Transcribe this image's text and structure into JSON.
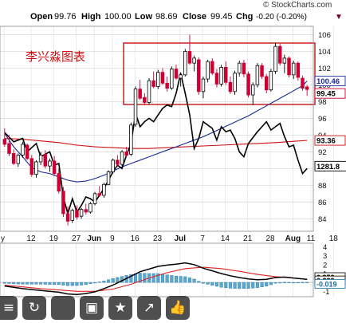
{
  "header": {
    "watermark": "© StockCharts.com",
    "open_label": "Open",
    "open_value": "99.76",
    "high_label": "High",
    "high_value": "100.00",
    "low_label": "Low",
    "low_value": "98.69",
    "close_label": "Close",
    "close_value": "99.45",
    "chg_label": "Chg",
    "chg_value": "-0.20 (-0.20%)",
    "chg_arrow": "▼"
  },
  "annotation": "李兴淼图表",
  "colors": {
    "up": "#ffffff",
    "down": "#cc0033",
    "price_line": "#000000",
    "ma_blue": "#1a2a9a",
    "ma_red": "#cc1111",
    "box": "#c00000",
    "macd": "#000000",
    "signal": "#dd2222",
    "hist": "#5aa8d0"
  },
  "chart_data": {
    "type": "candlestick",
    "x_labels": [
      "y",
      "12",
      "19",
      "27",
      "Jun",
      "9",
      "16",
      "23",
      "Jul",
      "7",
      "14",
      "21",
      "28",
      "Aug",
      "11",
      "18"
    ],
    "y_ticks": [
      84,
      86,
      88,
      90,
      92,
      94,
      96,
      98,
      100,
      102,
      104,
      106
    ],
    "ylim": [
      82.5,
      107
    ],
    "last_price_label": "99.45",
    "price_markers": [
      {
        "label": "100.46",
        "value": 100.46
      },
      {
        "label": "99.45",
        "value": 99.45
      },
      {
        "label": "93.36",
        "value": 93.36
      }
    ],
    "overlay_label": "1281.8",
    "macd_ticks": [
      "4",
      "3",
      "2",
      "1",
      "0",
      "-1"
    ],
    "macd_ylim": [
      -1.6,
      4.4
    ],
    "macd_labels": [
      "0.352",
      "0.333",
      "-0.019"
    ],
    "macd_labels_note": "partially obscured at right edge",
    "candles": [
      [
        93.5,
        94.8,
        92.6,
        92.9
      ],
      [
        93.0,
        94.0,
        91.5,
        91.8
      ],
      [
        91.8,
        92.3,
        90.4,
        90.6
      ],
      [
        90.6,
        91.8,
        90.2,
        91.6
      ],
      [
        91.6,
        93.2,
        91.3,
        92.9
      ],
      [
        92.8,
        93.0,
        91.0,
        91.2
      ],
      [
        91.2,
        91.6,
        89.0,
        89.3
      ],
      [
        89.3,
        91.0,
        88.9,
        90.8
      ],
      [
        90.8,
        92.0,
        90.4,
        91.6
      ],
      [
        91.7,
        92.2,
        90.0,
        90.3
      ],
      [
        90.3,
        91.2,
        89.6,
        90.9
      ],
      [
        90.9,
        91.5,
        89.1,
        89.4
      ],
      [
        89.4,
        90.0,
        87.0,
        87.3
      ],
      [
        87.3,
        87.8,
        84.2,
        84.6
      ],
      [
        84.6,
        85.5,
        83.2,
        83.7
      ],
      [
        83.8,
        85.2,
        83.5,
        85.0
      ],
      [
        85.0,
        85.6,
        83.9,
        84.2
      ],
      [
        84.3,
        85.3,
        84.0,
        85.1
      ],
      [
        85.1,
        85.8,
        84.5,
        84.8
      ],
      [
        84.8,
        86.0,
        84.6,
        85.8
      ],
      [
        85.8,
        87.2,
        85.6,
        87.0
      ],
      [
        87.0,
        87.9,
        86.6,
        86.8
      ],
      [
        86.8,
        88.3,
        86.5,
        88.1
      ],
      [
        88.1,
        89.8,
        88.0,
        89.6
      ],
      [
        89.6,
        91.2,
        89.4,
        91.0
      ],
      [
        91.0,
        91.6,
        90.2,
        90.5
      ],
      [
        90.5,
        92.2,
        90.3,
        92.0
      ],
      [
        92.0,
        92.6,
        91.4,
        91.6
      ],
      [
        91.7,
        95.5,
        91.5,
        95.2
      ],
      [
        95.3,
        99.8,
        95.0,
        99.5
      ],
      [
        99.5,
        100.6,
        98.2,
        98.4
      ],
      [
        98.5,
        99.0,
        97.6,
        97.9
      ],
      [
        97.9,
        100.8,
        97.7,
        100.5
      ],
      [
        100.5,
        101.6,
        99.6,
        99.8
      ],
      [
        99.8,
        101.8,
        99.5,
        101.5
      ],
      [
        101.5,
        102.0,
        100.0,
        100.2
      ],
      [
        100.2,
        101.0,
        99.2,
        99.6
      ],
      [
        99.6,
        102.2,
        99.4,
        101.9
      ],
      [
        101.9,
        102.4,
        100.6,
        100.8
      ],
      [
        100.8,
        101.5,
        99.8,
        101.2
      ],
      [
        101.2,
        104.3,
        101.0,
        104.0
      ],
      [
        104.0,
        106.0,
        102.4,
        102.6
      ],
      [
        102.6,
        103.5,
        101.6,
        103.2
      ],
      [
        103.0,
        103.3,
        98.8,
        99.2
      ],
      [
        99.2,
        101.0,
        98.4,
        100.7
      ],
      [
        100.7,
        103.0,
        100.3,
        102.8
      ],
      [
        102.8,
        103.2,
        101.2,
        101.4
      ],
      [
        101.4,
        101.9,
        99.7,
        100.1
      ],
      [
        100.1,
        102.4,
        99.8,
        102.1
      ],
      [
        102.1,
        102.8,
        100.0,
        100.3
      ],
      [
        100.3,
        101.0,
        98.9,
        99.2
      ],
      [
        99.2,
        101.7,
        98.8,
        101.4
      ],
      [
        101.4,
        102.9,
        101.0,
        102.6
      ],
      [
        102.6,
        103.0,
        100.9,
        101.3
      ],
      [
        101.3,
        101.6,
        98.5,
        98.8
      ],
      [
        98.8,
        100.3,
        97.6,
        100.0
      ],
      [
        100.0,
        102.6,
        99.7,
        102.3
      ],
      [
        102.3,
        102.6,
        100.7,
        101.0
      ],
      [
        101.0,
        101.3,
        99.0,
        99.4
      ],
      [
        99.4,
        101.9,
        99.2,
        101.6
      ],
      [
        101.6,
        105.0,
        101.3,
        104.6
      ],
      [
        104.6,
        104.9,
        102.3,
        102.6
      ],
      [
        102.6,
        103.6,
        101.4,
        103.2
      ],
      [
        103.2,
        103.4,
        100.9,
        101.2
      ],
      [
        101.2,
        102.9,
        100.7,
        102.6
      ],
      [
        102.6,
        102.8,
        100.5,
        100.9
      ],
      [
        100.8,
        101.1,
        99.3,
        99.6
      ],
      [
        99.76,
        100.0,
        98.69,
        99.45
      ]
    ],
    "series": [
      {
        "name": "",
        "values": [
          {
            "x": 0,
            "y": 94.2
          },
          {
            "x": 2,
            "y": 92.6
          },
          {
            "x": 4,
            "y": 91.4
          },
          {
            "x": 6,
            "y": 90.1
          },
          {
            "x": 8,
            "y": 89.6
          },
          {
            "x": 10,
            "y": 89.4
          },
          {
            "x": 12,
            "y": 89.0
          },
          {
            "x": 14,
            "y": 88.6
          },
          {
            "x": 16,
            "y": 88.4
          },
          {
            "x": 18,
            "y": 88.5
          },
          {
            "x": 20,
            "y": 88.8
          },
          {
            "x": 22,
            "y": 89.2
          },
          {
            "x": 24,
            "y": 89.7
          },
          {
            "x": 26,
            "y": 90.2
          },
          {
            "x": 28,
            "y": 90.6
          },
          {
            "x": 30,
            "y": 91.0
          },
          {
            "x": 32,
            "y": 91.4
          },
          {
            "x": 34,
            "y": 91.8
          },
          {
            "x": 36,
            "y": 92.2
          },
          {
            "x": 38,
            "y": 92.6
          },
          {
            "x": 40,
            "y": 93.0
          },
          {
            "x": 42,
            "y": 93.4
          },
          {
            "x": 44,
            "y": 93.8
          },
          {
            "x": 46,
            "y": 94.3
          },
          {
            "x": 48,
            "y": 94.8
          },
          {
            "x": 50,
            "y": 95.3
          },
          {
            "x": 52,
            "y": 95.8
          },
          {
            "x": 54,
            "y": 96.3
          },
          {
            "x": 56,
            "y": 96.9
          },
          {
            "x": 58,
            "y": 97.5
          },
          {
            "x": 60,
            "y": 98.1
          },
          {
            "x": 62,
            "y": 98.7
          },
          {
            "x": 64,
            "y": 99.3
          },
          {
            "x": 66,
            "y": 99.9
          },
          {
            "x": 67,
            "y": 100.46
          }
        ]
      },
      {
        "name": "",
        "values": [
          {
            "x": 0,
            "y": 93.6
          },
          {
            "x": 4,
            "y": 93.5
          },
          {
            "x": 8,
            "y": 93.3
          },
          {
            "x": 12,
            "y": 93.1
          },
          {
            "x": 16,
            "y": 92.8
          },
          {
            "x": 20,
            "y": 92.6
          },
          {
            "x": 24,
            "y": 92.5
          },
          {
            "x": 28,
            "y": 92.4
          },
          {
            "x": 32,
            "y": 92.4
          },
          {
            "x": 36,
            "y": 92.5
          },
          {
            "x": 40,
            "y": 92.6
          },
          {
            "x": 44,
            "y": 92.7
          },
          {
            "x": 48,
            "y": 92.8
          },
          {
            "x": 52,
            "y": 92.9
          },
          {
            "x": 56,
            "y": 93.0
          },
          {
            "x": 60,
            "y": 93.1
          },
          {
            "x": 64,
            "y": 93.25
          },
          {
            "x": 67,
            "y": 93.36
          }
        ]
      },
      {
        "name": "",
        "values": [
          {
            "x": 0,
            "y": 94.3
          },
          {
            "x": 2,
            "y": 93.2
          },
          {
            "x": 4,
            "y": 93.6
          },
          {
            "x": 5,
            "y": 92.0
          },
          {
            "x": 7,
            "y": 93.0
          },
          {
            "x": 8,
            "y": 91.4
          },
          {
            "x": 10,
            "y": 92.0
          },
          {
            "x": 11,
            "y": 90.4
          },
          {
            "x": 12,
            "y": 90.6
          },
          {
            "x": 13,
            "y": 86.6
          },
          {
            "x": 14,
            "y": 84.6
          },
          {
            "x": 15,
            "y": 86.4
          },
          {
            "x": 16,
            "y": 84.8
          },
          {
            "x": 17,
            "y": 85.6
          },
          {
            "x": 18,
            "y": 86.6
          },
          {
            "x": 19,
            "y": 86.4
          },
          {
            "x": 20,
            "y": 86.0
          },
          {
            "x": 22,
            "y": 87.6
          },
          {
            "x": 24,
            "y": 89.6
          },
          {
            "x": 25,
            "y": 90.4
          },
          {
            "x": 26,
            "y": 90.0
          },
          {
            "x": 27,
            "y": 91.6
          },
          {
            "x": 28,
            "y": 93.0
          },
          {
            "x": 29,
            "y": 96.6
          },
          {
            "x": 30,
            "y": 95.0
          },
          {
            "x": 31,
            "y": 95.6
          },
          {
            "x": 32,
            "y": 96.0
          },
          {
            "x": 33,
            "y": 95.6
          },
          {
            "x": 34,
            "y": 96.4
          },
          {
            "x": 35,
            "y": 97.2
          },
          {
            "x": 36,
            "y": 97.6
          },
          {
            "x": 37,
            "y": 97.4
          },
          {
            "x": 38,
            "y": 99.0
          },
          {
            "x": 39,
            "y": 101.4
          },
          {
            "x": 40,
            "y": 99.0
          },
          {
            "x": 41,
            "y": 96.4
          },
          {
            "x": 42,
            "y": 92.4
          },
          {
            "x": 43,
            "y": 93.6
          },
          {
            "x": 44,
            "y": 95.6
          },
          {
            "x": 45,
            "y": 95.2
          },
          {
            "x": 46,
            "y": 94.8
          },
          {
            "x": 47,
            "y": 93.4
          },
          {
            "x": 48,
            "y": 95.0
          },
          {
            "x": 49,
            "y": 94.4
          },
          {
            "x": 50,
            "y": 94.6
          },
          {
            "x": 51,
            "y": 93.6
          },
          {
            "x": 52,
            "y": 92.0
          },
          {
            "x": 53,
            "y": 91.4
          },
          {
            "x": 54,
            "y": 93.0
          },
          {
            "x": 56,
            "y": 94.4
          },
          {
            "x": 57,
            "y": 95.0
          },
          {
            "x": 58,
            "y": 95.6
          },
          {
            "x": 59,
            "y": 94.6
          },
          {
            "x": 60,
            "y": 95.0
          },
          {
            "x": 61,
            "y": 95.4
          },
          {
            "x": 62,
            "y": 93.8
          },
          {
            "x": 63,
            "y": 92.6
          },
          {
            "x": 64,
            "y": 92.8
          },
          {
            "x": 65,
            "y": 91.0
          },
          {
            "x": 66,
            "y": 89.4
          },
          {
            "x": 67,
            "y": 90.0
          }
        ]
      }
    ],
    "macd": [
      {
        "x": 0,
        "y": -0.4
      },
      {
        "x": 4,
        "y": -0.7
      },
      {
        "x": 8,
        "y": -0.9
      },
      {
        "x": 12,
        "y": -1.1
      },
      {
        "x": 14,
        "y": -1.3
      },
      {
        "x": 16,
        "y": -1.35
      },
      {
        "x": 18,
        "y": -1.25
      },
      {
        "x": 20,
        "y": -1.05
      },
      {
        "x": 22,
        "y": -0.7
      },
      {
        "x": 24,
        "y": -0.3
      },
      {
        "x": 26,
        "y": 0.2
      },
      {
        "x": 28,
        "y": 0.7
      },
      {
        "x": 30,
        "y": 1.2
      },
      {
        "x": 32,
        "y": 1.5
      },
      {
        "x": 34,
        "y": 1.8
      },
      {
        "x": 36,
        "y": 1.95
      },
      {
        "x": 38,
        "y": 2.05
      },
      {
        "x": 40,
        "y": 2.2
      },
      {
        "x": 42,
        "y": 2.0
      },
      {
        "x": 44,
        "y": 1.6
      },
      {
        "x": 46,
        "y": 1.3
      },
      {
        "x": 48,
        "y": 1.0
      },
      {
        "x": 50,
        "y": 0.75
      },
      {
        "x": 52,
        "y": 0.55
      },
      {
        "x": 54,
        "y": 0.4
      },
      {
        "x": 56,
        "y": 0.3
      },
      {
        "x": 58,
        "y": 0.35
      },
      {
        "x": 60,
        "y": 0.55
      },
      {
        "x": 62,
        "y": 0.6
      },
      {
        "x": 64,
        "y": 0.5
      },
      {
        "x": 66,
        "y": 0.4
      },
      {
        "x": 67,
        "y": 0.35
      }
    ],
    "macd_signal": [
      {
        "x": 0,
        "y": -0.3
      },
      {
        "x": 4,
        "y": -0.5
      },
      {
        "x": 8,
        "y": -0.7
      },
      {
        "x": 12,
        "y": -0.85
      },
      {
        "x": 16,
        "y": -1.0
      },
      {
        "x": 20,
        "y": -1.0
      },
      {
        "x": 24,
        "y": -0.75
      },
      {
        "x": 28,
        "y": -0.2
      },
      {
        "x": 32,
        "y": 0.5
      },
      {
        "x": 36,
        "y": 1.1
      },
      {
        "x": 40,
        "y": 1.55
      },
      {
        "x": 44,
        "y": 1.7
      },
      {
        "x": 48,
        "y": 1.55
      },
      {
        "x": 52,
        "y": 1.25
      },
      {
        "x": 56,
        "y": 0.9
      },
      {
        "x": 60,
        "y": 0.65
      },
      {
        "x": 64,
        "y": 0.5
      },
      {
        "x": 67,
        "y": 0.33
      }
    ]
  }
}
